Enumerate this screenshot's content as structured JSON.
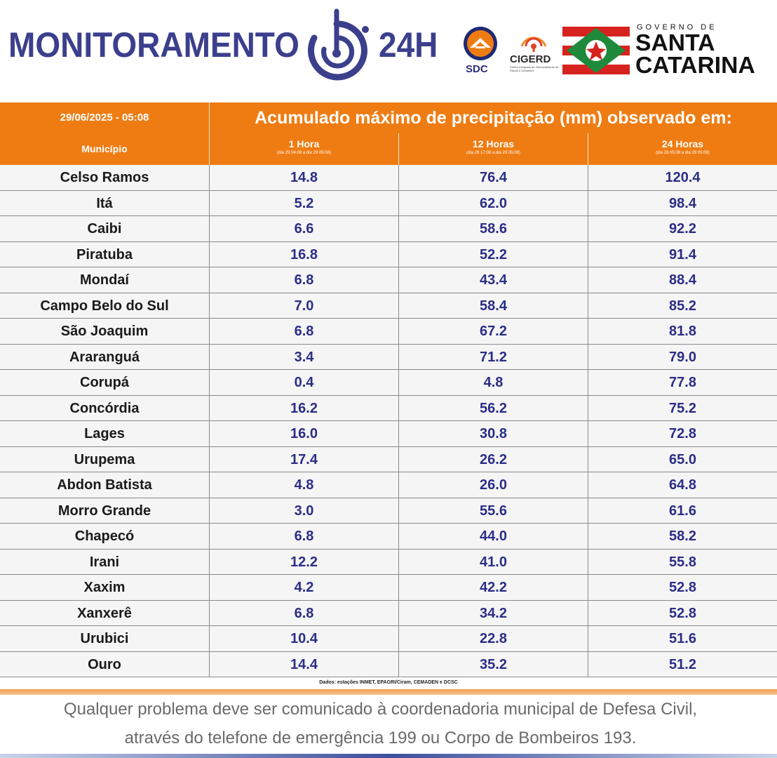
{
  "header": {
    "brand_title": "MONITORAMENTO",
    "brand_24h": "24H",
    "sdc_label": "SDC",
    "cigerd_label": "CIGERD",
    "cigerd_subtitle": "Centro Integrado de Gerenciamento de Riscos e Desastres",
    "gov_small": "GOVERNO DE",
    "gov_line1": "SANTA",
    "gov_line2": "CATARINA",
    "colors": {
      "brand": "#3b3f8c",
      "orange": "#ef7c12",
      "value_blue": "#2b2d86"
    }
  },
  "table": {
    "date": "29/06/2025 - 05:08",
    "title": "Acumulado máximo de precipitação (mm) observado em:",
    "col_municipio": "Município",
    "col1": {
      "label": "1 Hora",
      "sub": "(dia 29 04:08 a dia 29 05:08)"
    },
    "col2": {
      "label": "12 Horas",
      "sub": "(dia 28 17:08 a dia 29 05:08)"
    },
    "col3": {
      "label": "24 Horas",
      "sub": "(dia 28 05:08 a dia 29 05:08)"
    },
    "rows": [
      {
        "name": "Celso Ramos",
        "h1": "14.8",
        "h12": "76.4",
        "h24": "120.4"
      },
      {
        "name": "Itá",
        "h1": "5.2",
        "h12": "62.0",
        "h24": "98.4"
      },
      {
        "name": "Caibi",
        "h1": "6.6",
        "h12": "58.6",
        "h24": "92.2"
      },
      {
        "name": "Piratuba",
        "h1": "16.8",
        "h12": "52.2",
        "h24": "91.4"
      },
      {
        "name": "Mondaí",
        "h1": "6.8",
        "h12": "43.4",
        "h24": "88.4"
      },
      {
        "name": "Campo Belo do Sul",
        "h1": "7.0",
        "h12": "58.4",
        "h24": "85.2"
      },
      {
        "name": "São Joaquim",
        "h1": "6.8",
        "h12": "67.2",
        "h24": "81.8"
      },
      {
        "name": "Araranguá",
        "h1": "3.4",
        "h12": "71.2",
        "h24": "79.0"
      },
      {
        "name": "Corupá",
        "h1": "0.4",
        "h12": "4.8",
        "h24": "77.8"
      },
      {
        "name": "Concórdia",
        "h1": "16.2",
        "h12": "56.2",
        "h24": "75.2"
      },
      {
        "name": "Lages",
        "h1": "16.0",
        "h12": "30.8",
        "h24": "72.8"
      },
      {
        "name": "Urupema",
        "h1": "17.4",
        "h12": "26.2",
        "h24": "65.0"
      },
      {
        "name": "Abdon Batista",
        "h1": "4.8",
        "h12": "26.0",
        "h24": "64.8"
      },
      {
        "name": "Morro Grande",
        "h1": "3.0",
        "h12": "55.6",
        "h24": "61.6"
      },
      {
        "name": "Chapecó",
        "h1": "6.8",
        "h12": "44.0",
        "h24": "58.2"
      },
      {
        "name": "Irani",
        "h1": "12.2",
        "h12": "41.0",
        "h24": "55.8"
      },
      {
        "name": "Xaxim",
        "h1": "4.2",
        "h12": "42.2",
        "h24": "52.8"
      },
      {
        "name": "Xanxerê",
        "h1": "6.8",
        "h12": "34.2",
        "h24": "52.8"
      },
      {
        "name": "Urubici",
        "h1": "10.4",
        "h12": "22.8",
        "h24": "51.6"
      },
      {
        "name": "Ouro",
        "h1": "14.4",
        "h12": "35.2",
        "h24": "51.2"
      }
    ],
    "source": "Dados: estações INMET, EPAGRI/Ciram, CEMADEN e DCSC"
  },
  "footer": {
    "line1": "Qualquer problema deve ser comunicado à coordenadoria municipal de Defesa Civil,",
    "line2": "através do telefone de emergência 199 ou Corpo de Bombeiros 193."
  }
}
